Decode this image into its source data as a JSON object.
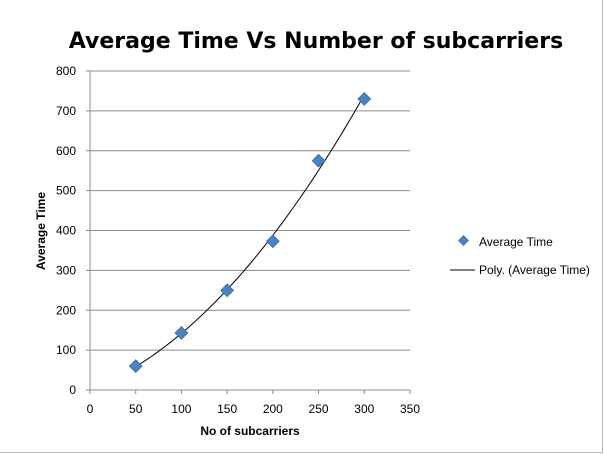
{
  "chart_data": {
    "type": "scatter",
    "title": "Average Time Vs Number of subcarriers",
    "xlabel": "No of subcarriers",
    "ylabel": "Average Time",
    "xlim": [
      0,
      350
    ],
    "ylim": [
      0,
      800
    ],
    "xticks": [
      "0",
      "50",
      "100",
      "150",
      "200",
      "250",
      "300",
      "350"
    ],
    "yticks": [
      "0",
      "100",
      "200",
      "300",
      "400",
      "500",
      "600",
      "700",
      "800"
    ],
    "grid": "horizontal",
    "legend_position": "right",
    "series": [
      {
        "name": "Average Time",
        "marker": "diamond",
        "color": "#4f81bd",
        "x": [
          50,
          100,
          150,
          200,
          250,
          300
        ],
        "y": [
          60,
          143,
          250,
          373,
          575,
          730
        ]
      }
    ],
    "trendline": {
      "name": "Poly. (Average Time)",
      "type": "polynomial",
      "color": "#000000"
    }
  }
}
